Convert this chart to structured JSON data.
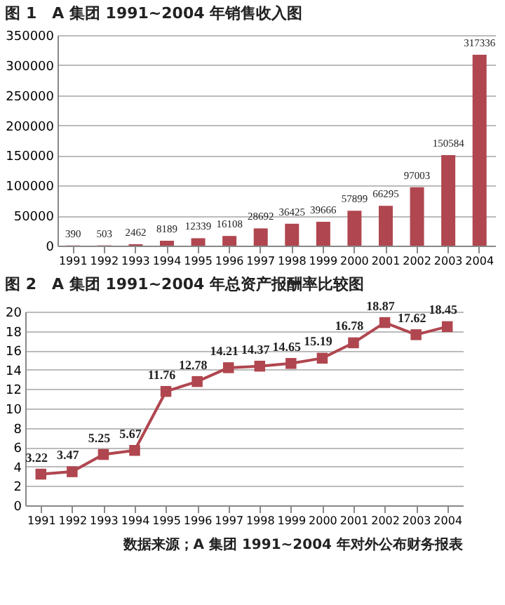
{
  "chart_data": [
    {
      "type": "bar",
      "title": "图 1　A 集团 1991~2004 年销售收入图",
      "categories": [
        "1991",
        "1992",
        "1993",
        "1994",
        "1995",
        "1996",
        "1997",
        "1998",
        "1999",
        "2000",
        "2001",
        "2002",
        "2003",
        "2004"
      ],
      "values": [
        390,
        503,
        2462,
        8189,
        12339,
        16108,
        28692,
        36425,
        39666,
        57899,
        66295,
        97003,
        150584,
        317336
      ],
      "color": "#b0464f",
      "ylim": [
        0,
        350000
      ],
      "yticks": [
        0,
        50000,
        100000,
        150000,
        200000,
        250000,
        300000,
        350000
      ],
      "grid": "y",
      "data_labels": true
    },
    {
      "type": "line",
      "title": "图 2　A 集团 1991~2004 年总资产报酬率比较图",
      "categories": [
        "1991",
        "1992",
        "1993",
        "1994",
        "1995",
        "1996",
        "1997",
        "1998",
        "1999",
        "2000",
        "2001",
        "2002",
        "2003",
        "2004"
      ],
      "values": [
        3.22,
        3.47,
        5.25,
        5.67,
        11.76,
        12.78,
        14.21,
        14.37,
        14.65,
        15.19,
        16.78,
        18.87,
        17.62,
        18.45
      ],
      "color": "#b0464f",
      "ylim": [
        0,
        20
      ],
      "yticks": [
        0,
        2,
        4,
        6,
        8,
        10,
        12,
        14,
        16,
        18,
        20
      ],
      "grid": "y",
      "data_labels": true,
      "marker": "square",
      "annotations": [
        "数据来源；A 集团 1991~2004 年对外公布财务报表"
      ]
    }
  ]
}
